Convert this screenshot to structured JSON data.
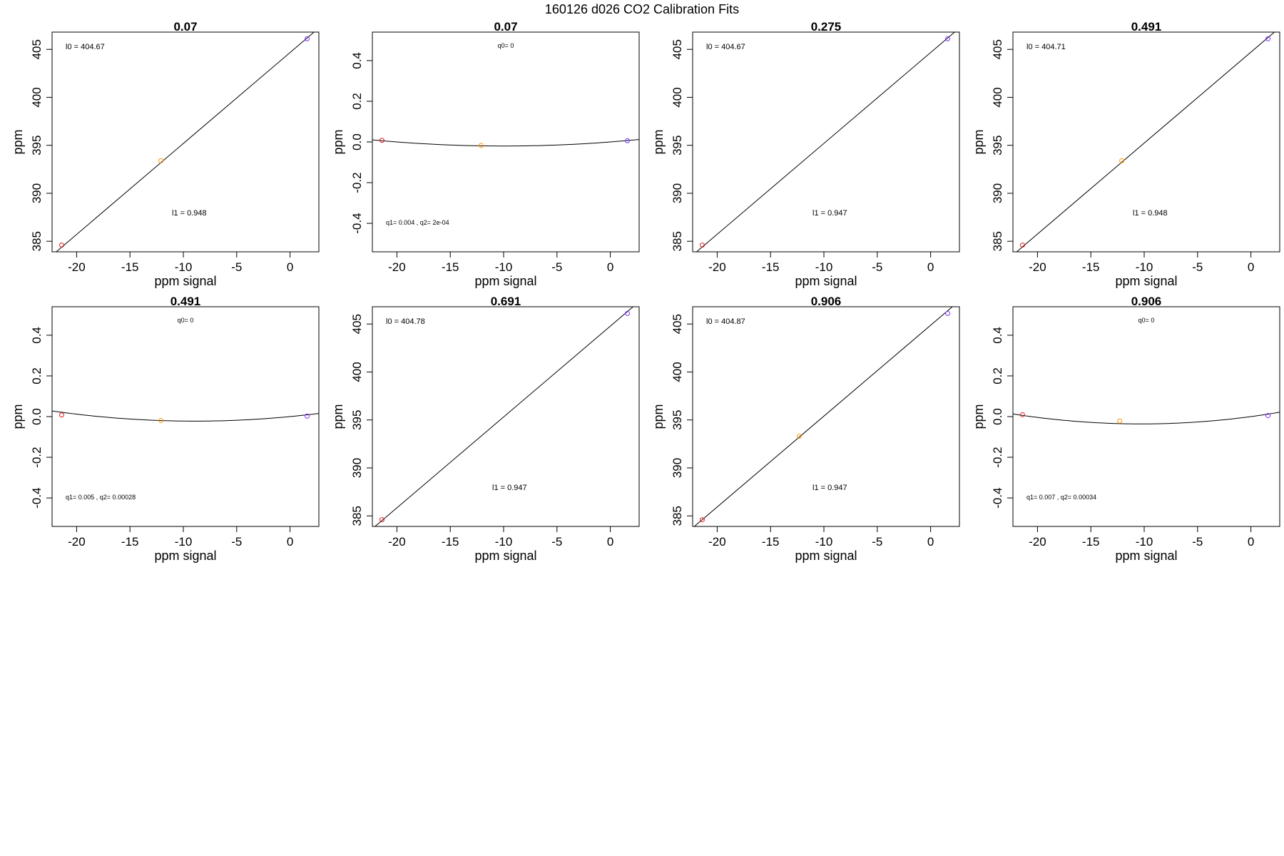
{
  "figure_title": "160126   d026   CO2 Calibration Fits",
  "chart_data": [
    {
      "type": "scatter",
      "fit": "linear",
      "title": "0.07",
      "xlabel": "ppm signal",
      "ylabel": "ppm",
      "xlim": [
        -22.3,
        2.7
      ],
      "ylim": [
        383.9,
        406.8
      ],
      "xticks": [
        -20,
        -15,
        -10,
        -5,
        0
      ],
      "yticks": [
        385,
        390,
        395,
        400,
        405
      ],
      "points": [
        {
          "x": -21.4,
          "y": 384.6,
          "color": "#e31a1c"
        },
        {
          "x": -12.1,
          "y": 393.4,
          "color": "#ff9900"
        },
        {
          "x": 1.6,
          "y": 406.1,
          "color": "#7b2fff"
        }
      ],
      "coefficients": {
        "l0": 404.67,
        "l1": 0.948
      },
      "annotations": {
        "top": "l0 =  404.67",
        "bottom": "l1 =  0.948"
      }
    },
    {
      "type": "scatter",
      "fit": "quadratic",
      "title": "0.07",
      "xlabel": "ppm signal",
      "ylabel": "ppm",
      "xlim": [
        -22.3,
        2.7
      ],
      "ylim": [
        -0.54,
        0.54
      ],
      "xticks": [
        -20,
        -15,
        -10,
        -5,
        0
      ],
      "yticks": [
        -0.4,
        -0.2,
        0.0,
        0.2,
        0.4
      ],
      "ytick_labels": [
        "-0.4",
        "-0.2",
        "0.0",
        "0.2",
        "0.4"
      ],
      "points": [
        {
          "x": -21.4,
          "y": 0.008,
          "color": "#e31a1c"
        },
        {
          "x": -12.1,
          "y": -0.017,
          "color": "#ff9900"
        },
        {
          "x": 1.6,
          "y": 0.006,
          "color": "#7b2fff"
        }
      ],
      "coefficients": {
        "q0": 0,
        "q1": 0.004,
        "q2": 0.0002
      },
      "annotations": {
        "top": "q0= 0",
        "bottom": "q1= 0.004 , q2= 2e-04"
      }
    },
    {
      "type": "scatter",
      "fit": "linear",
      "title": "0.275",
      "xlabel": "ppm signal",
      "ylabel": "ppm",
      "xlim": [
        -22.3,
        2.7
      ],
      "ylim": [
        383.9,
        406.8
      ],
      "xticks": [
        -20,
        -15,
        -10,
        -5,
        0
      ],
      "yticks": [
        385,
        390,
        395,
        400,
        405
      ],
      "points": [
        {
          "x": -21.4,
          "y": 384.6,
          "color": "#e31a1c"
        },
        {
          "x": 1.6,
          "y": 406.1,
          "color": "#7b2fff"
        }
      ],
      "coefficients": {
        "l0": 404.67,
        "l1": 0.947
      },
      "annotations": {
        "top": "l0 =  404.67",
        "bottom": "l1 =  0.947"
      }
    },
    {
      "type": "scatter",
      "fit": "linear",
      "title": "0.491",
      "xlabel": "ppm signal",
      "ylabel": "ppm",
      "xlim": [
        -22.3,
        2.7
      ],
      "ylim": [
        383.9,
        406.8
      ],
      "xticks": [
        -20,
        -15,
        -10,
        -5,
        0
      ],
      "yticks": [
        385,
        390,
        395,
        400,
        405
      ],
      "points": [
        {
          "x": -21.4,
          "y": 384.6,
          "color": "#e31a1c"
        },
        {
          "x": -12.1,
          "y": 393.4,
          "color": "#ff9900"
        },
        {
          "x": 1.6,
          "y": 406.1,
          "color": "#7b2fff"
        }
      ],
      "coefficients": {
        "l0": 404.71,
        "l1": 0.948
      },
      "annotations": {
        "top": "l0 =  404.71",
        "bottom": "l1 =  0.948"
      }
    },
    {
      "type": "scatter",
      "fit": "quadratic",
      "title": "0.491",
      "xlabel": "ppm signal",
      "ylabel": "ppm",
      "xlim": [
        -22.3,
        2.7
      ],
      "ylim": [
        -0.54,
        0.54
      ],
      "xticks": [
        -20,
        -15,
        -10,
        -5,
        0
      ],
      "yticks": [
        -0.4,
        -0.2,
        0.0,
        0.2,
        0.4
      ],
      "ytick_labels": [
        "-0.4",
        "-0.2",
        "0.0",
        "0.2",
        "0.4"
      ],
      "points": [
        {
          "x": -21.4,
          "y": 0.008,
          "color": "#e31a1c"
        },
        {
          "x": -12.1,
          "y": -0.019,
          "color": "#ff9900"
        },
        {
          "x": 1.6,
          "y": 0.002,
          "color": "#7b2fff"
        }
      ],
      "coefficients": {
        "q0": 0,
        "q1": 0.005,
        "q2": 0.00028
      },
      "annotations": {
        "top": "q0= 0",
        "bottom": "q1= 0.005 , q2= 0.00028"
      }
    },
    {
      "type": "scatter",
      "fit": "linear",
      "title": "0.691",
      "xlabel": "ppm signal",
      "ylabel": "ppm",
      "xlim": [
        -22.3,
        2.7
      ],
      "ylim": [
        383.9,
        406.8
      ],
      "xticks": [
        -20,
        -15,
        -10,
        -5,
        0
      ],
      "yticks": [
        385,
        390,
        395,
        400,
        405
      ],
      "points": [
        {
          "x": -21.4,
          "y": 384.6,
          "color": "#e31a1c"
        },
        {
          "x": 1.6,
          "y": 406.1,
          "color": "#7b2fff"
        }
      ],
      "coefficients": {
        "l0": 404.78,
        "l1": 0.947
      },
      "annotations": {
        "top": "l0 =  404.78",
        "bottom": "l1 =  0.947"
      }
    },
    {
      "type": "scatter",
      "fit": "linear",
      "title": "0.906",
      "xlabel": "ppm signal",
      "ylabel": "ppm",
      "xlim": [
        -22.3,
        2.7
      ],
      "ylim": [
        383.9,
        406.8
      ],
      "xticks": [
        -20,
        -15,
        -10,
        -5,
        0
      ],
      "yticks": [
        385,
        390,
        395,
        400,
        405
      ],
      "points": [
        {
          "x": -21.4,
          "y": 384.6,
          "color": "#e31a1c"
        },
        {
          "x": -12.3,
          "y": 393.3,
          "color": "#ff9900"
        },
        {
          "x": 1.6,
          "y": 406.1,
          "color": "#7b2fff"
        }
      ],
      "coefficients": {
        "l0": 404.87,
        "l1": 0.947
      },
      "annotations": {
        "top": "l0 =  404.87",
        "bottom": "l1 =  0.947"
      }
    },
    {
      "type": "scatter",
      "fit": "quadratic",
      "title": "0.906",
      "xlabel": "ppm signal",
      "ylabel": "ppm",
      "xlim": [
        -22.3,
        2.7
      ],
      "ylim": [
        -0.54,
        0.54
      ],
      "xticks": [
        -20,
        -15,
        -10,
        -5,
        0
      ],
      "yticks": [
        -0.4,
        -0.2,
        0.0,
        0.2,
        0.4
      ],
      "ytick_labels": [
        "-0.4",
        "-0.2",
        "0.0",
        "0.2",
        "0.4"
      ],
      "points": [
        {
          "x": -21.4,
          "y": 0.009,
          "color": "#e31a1c"
        },
        {
          "x": -12.3,
          "y": -0.022,
          "color": "#ff9900"
        },
        {
          "x": 1.6,
          "y": 0.005,
          "color": "#7b2fff"
        }
      ],
      "coefficients": {
        "q0": 0,
        "q1": 0.007,
        "q2": 0.00034
      },
      "annotations": {
        "top": "q0= 0",
        "bottom": "q1= 0.007 , q2= 0.00034"
      }
    }
  ]
}
